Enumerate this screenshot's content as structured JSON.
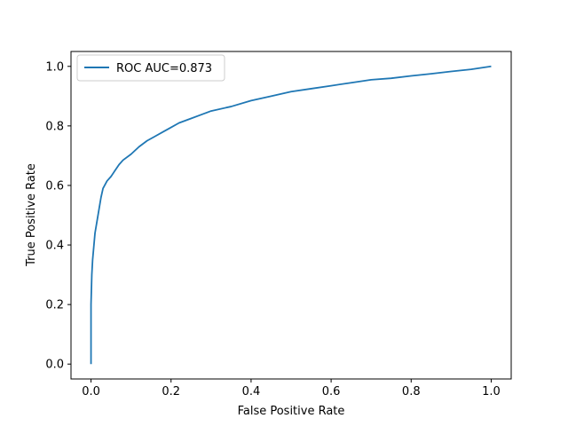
{
  "chart_data": {
    "type": "line",
    "title": "",
    "xlabel": "False Positive Rate",
    "ylabel": "True Positive Rate",
    "xlim": [
      -0.05,
      1.05
    ],
    "ylim": [
      -0.05,
      1.05
    ],
    "xticks": [
      "0.0",
      "0.2",
      "0.4",
      "0.6",
      "0.8",
      "1.0"
    ],
    "yticks": [
      "0.0",
      "0.2",
      "0.4",
      "0.6",
      "0.8",
      "1.0"
    ],
    "grid": false,
    "legend_position": "upper-left",
    "series": [
      {
        "name": "ROC AUC=0.873",
        "color": "#1f77b4",
        "x": [
          0.0,
          0.0,
          0.002,
          0.004,
          0.006,
          0.008,
          0.01,
          0.015,
          0.02,
          0.025,
          0.03,
          0.04,
          0.05,
          0.06,
          0.07,
          0.08,
          0.1,
          0.12,
          0.14,
          0.16,
          0.18,
          0.2,
          0.22,
          0.25,
          0.28,
          0.3,
          0.35,
          0.4,
          0.45,
          0.5,
          0.55,
          0.6,
          0.65,
          0.7,
          0.75,
          0.8,
          0.85,
          0.9,
          0.95,
          1.0
        ],
        "y": [
          0.0,
          0.2,
          0.3,
          0.35,
          0.38,
          0.41,
          0.44,
          0.48,
          0.52,
          0.56,
          0.59,
          0.615,
          0.63,
          0.65,
          0.67,
          0.685,
          0.705,
          0.73,
          0.75,
          0.765,
          0.78,
          0.795,
          0.81,
          0.825,
          0.84,
          0.85,
          0.865,
          0.885,
          0.9,
          0.915,
          0.925,
          0.935,
          0.945,
          0.955,
          0.96,
          0.968,
          0.975,
          0.983,
          0.99,
          1.0
        ]
      }
    ]
  }
}
